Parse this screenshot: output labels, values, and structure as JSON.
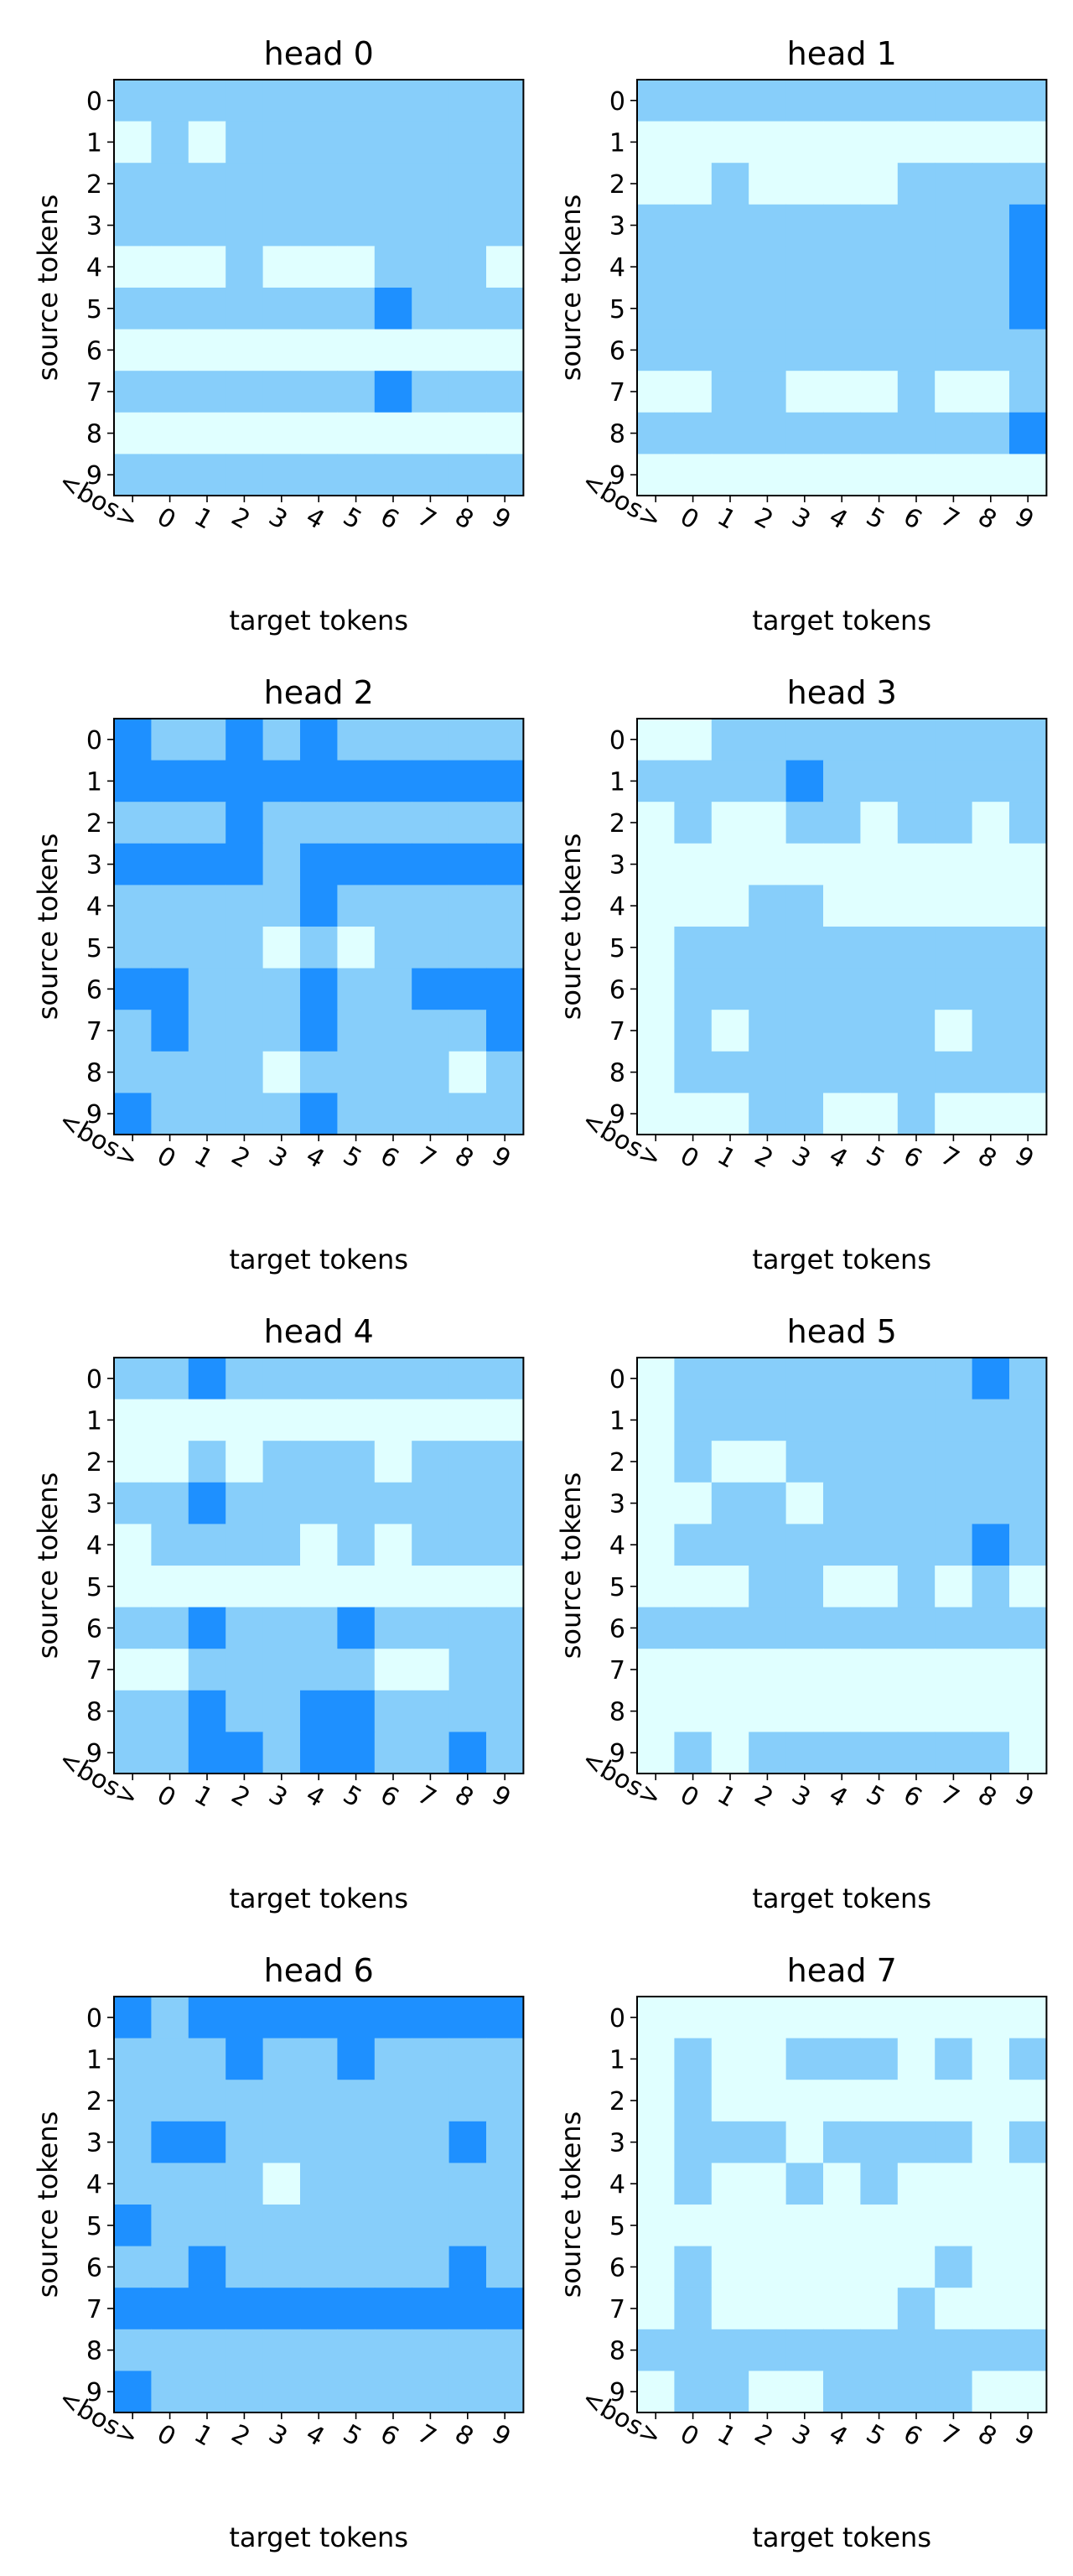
{
  "colors": {
    "low": "#e0ffff",
    "mid": "#87cefa",
    "high": "#1e90ff"
  },
  "chart_data": [
    {
      "type": "heatmap",
      "title": "head 0",
      "xlabel": "target tokens",
      "ylabel": "source tokens",
      "x_ticks": [
        "<bos>",
        "0",
        "1",
        "2",
        "3",
        "4",
        "5",
        "6",
        "7",
        "8",
        "9"
      ],
      "y_ticks": [
        "0",
        "1",
        "2",
        "3",
        "4",
        "5",
        "6",
        "7",
        "8",
        "9"
      ],
      "values": [
        [
          1,
          1,
          1,
          1,
          1,
          1,
          1,
          1,
          1,
          1,
          1
        ],
        [
          0,
          1,
          0,
          1,
          1,
          1,
          1,
          1,
          1,
          1,
          1
        ],
        [
          1,
          1,
          1,
          1,
          1,
          1,
          1,
          1,
          1,
          1,
          1
        ],
        [
          1,
          1,
          1,
          1,
          1,
          1,
          1,
          1,
          1,
          1,
          1
        ],
        [
          0,
          0,
          0,
          1,
          0,
          0,
          0,
          1,
          1,
          1,
          0
        ],
        [
          1,
          1,
          1,
          1,
          1,
          1,
          1,
          2,
          1,
          1,
          1
        ],
        [
          0,
          0,
          0,
          0,
          0,
          0,
          0,
          0,
          0,
          0,
          0
        ],
        [
          1,
          1,
          1,
          1,
          1,
          1,
          1,
          2,
          1,
          1,
          1
        ],
        [
          0,
          0,
          0,
          0,
          0,
          0,
          0,
          0,
          0,
          0,
          0
        ],
        [
          1,
          1,
          1,
          1,
          1,
          1,
          1,
          1,
          1,
          1,
          1
        ]
      ]
    },
    {
      "type": "heatmap",
      "title": "head 1",
      "xlabel": "target tokens",
      "ylabel": "source tokens",
      "x_ticks": [
        "<bos>",
        "0",
        "1",
        "2",
        "3",
        "4",
        "5",
        "6",
        "7",
        "8",
        "9"
      ],
      "y_ticks": [
        "0",
        "1",
        "2",
        "3",
        "4",
        "5",
        "6",
        "7",
        "8",
        "9"
      ],
      "values": [
        [
          1,
          1,
          1,
          1,
          1,
          1,
          1,
          1,
          1,
          1,
          1
        ],
        [
          0,
          0,
          0,
          0,
          0,
          0,
          0,
          0,
          0,
          0,
          0
        ],
        [
          0,
          0,
          1,
          0,
          0,
          0,
          0,
          1,
          1,
          1,
          1
        ],
        [
          1,
          1,
          1,
          1,
          1,
          1,
          1,
          1,
          1,
          1,
          2
        ],
        [
          1,
          1,
          1,
          1,
          1,
          1,
          1,
          1,
          1,
          1,
          2
        ],
        [
          1,
          1,
          1,
          1,
          1,
          1,
          1,
          1,
          1,
          1,
          2
        ],
        [
          1,
          1,
          1,
          1,
          1,
          1,
          1,
          1,
          1,
          1,
          1
        ],
        [
          0,
          0,
          1,
          1,
          0,
          0,
          0,
          1,
          0,
          0,
          1
        ],
        [
          1,
          1,
          1,
          1,
          1,
          1,
          1,
          1,
          1,
          1,
          2
        ],
        [
          0,
          0,
          0,
          0,
          0,
          0,
          0,
          0,
          0,
          0,
          0
        ]
      ]
    },
    {
      "type": "heatmap",
      "title": "head 2",
      "xlabel": "target tokens",
      "ylabel": "source tokens",
      "x_ticks": [
        "<bos>",
        "0",
        "1",
        "2",
        "3",
        "4",
        "5",
        "6",
        "7",
        "8",
        "9"
      ],
      "y_ticks": [
        "0",
        "1",
        "2",
        "3",
        "4",
        "5",
        "6",
        "7",
        "8",
        "9"
      ],
      "values": [
        [
          2,
          1,
          1,
          2,
          1,
          2,
          1,
          1,
          1,
          1,
          1
        ],
        [
          2,
          2,
          2,
          2,
          2,
          2,
          2,
          2,
          2,
          2,
          2
        ],
        [
          1,
          1,
          1,
          2,
          1,
          1,
          1,
          1,
          1,
          1,
          1
        ],
        [
          2,
          2,
          2,
          2,
          1,
          2,
          2,
          2,
          2,
          2,
          2
        ],
        [
          1,
          1,
          1,
          1,
          1,
          2,
          1,
          1,
          1,
          1,
          1
        ],
        [
          1,
          1,
          1,
          1,
          0,
          1,
          0,
          1,
          1,
          1,
          1
        ],
        [
          2,
          2,
          1,
          1,
          1,
          2,
          1,
          1,
          2,
          2,
          2
        ],
        [
          1,
          2,
          1,
          1,
          1,
          2,
          1,
          1,
          1,
          1,
          2
        ],
        [
          1,
          1,
          1,
          1,
          0,
          1,
          1,
          1,
          1,
          0,
          1
        ],
        [
          2,
          1,
          1,
          1,
          1,
          2,
          1,
          1,
          1,
          1,
          1
        ]
      ]
    },
    {
      "type": "heatmap",
      "title": "head 3",
      "xlabel": "target tokens",
      "ylabel": "source tokens",
      "x_ticks": [
        "<bos>",
        "0",
        "1",
        "2",
        "3",
        "4",
        "5",
        "6",
        "7",
        "8",
        "9"
      ],
      "y_ticks": [
        "0",
        "1",
        "2",
        "3",
        "4",
        "5",
        "6",
        "7",
        "8",
        "9"
      ],
      "values": [
        [
          0,
          0,
          1,
          1,
          1,
          1,
          1,
          1,
          1,
          1,
          1
        ],
        [
          1,
          1,
          1,
          1,
          2,
          1,
          1,
          1,
          1,
          1,
          1
        ],
        [
          0,
          1,
          0,
          0,
          1,
          1,
          0,
          1,
          1,
          0,
          1
        ],
        [
          0,
          0,
          0,
          0,
          0,
          0,
          0,
          0,
          0,
          0,
          0
        ],
        [
          0,
          0,
          0,
          1,
          1,
          0,
          0,
          0,
          0,
          0,
          0
        ],
        [
          0,
          1,
          1,
          1,
          1,
          1,
          1,
          1,
          1,
          1,
          1
        ],
        [
          0,
          1,
          1,
          1,
          1,
          1,
          1,
          1,
          1,
          1,
          1
        ],
        [
          0,
          1,
          0,
          1,
          1,
          1,
          1,
          1,
          0,
          1,
          1
        ],
        [
          0,
          1,
          1,
          1,
          1,
          1,
          1,
          1,
          1,
          1,
          1
        ],
        [
          0,
          0,
          0,
          1,
          1,
          0,
          0,
          1,
          0,
          0,
          0
        ]
      ]
    },
    {
      "type": "heatmap",
      "title": "head 4",
      "xlabel": "target tokens",
      "ylabel": "source tokens",
      "x_ticks": [
        "<bos>",
        "0",
        "1",
        "2",
        "3",
        "4",
        "5",
        "6",
        "7",
        "8",
        "9"
      ],
      "y_ticks": [
        "0",
        "1",
        "2",
        "3",
        "4",
        "5",
        "6",
        "7",
        "8",
        "9"
      ],
      "values": [
        [
          1,
          1,
          2,
          1,
          1,
          1,
          1,
          1,
          1,
          1,
          1
        ],
        [
          0,
          0,
          0,
          0,
          0,
          0,
          0,
          0,
          0,
          0,
          0
        ],
        [
          0,
          0,
          1,
          0,
          1,
          1,
          1,
          0,
          1,
          1,
          1
        ],
        [
          1,
          1,
          2,
          1,
          1,
          1,
          1,
          1,
          1,
          1,
          1
        ],
        [
          0,
          1,
          1,
          1,
          1,
          0,
          1,
          0,
          1,
          1,
          1
        ],
        [
          0,
          0,
          0,
          0,
          0,
          0,
          0,
          0,
          0,
          0,
          0
        ],
        [
          1,
          1,
          2,
          1,
          1,
          1,
          2,
          1,
          1,
          1,
          1
        ],
        [
          0,
          0,
          1,
          1,
          1,
          1,
          1,
          0,
          0,
          1,
          1
        ],
        [
          1,
          1,
          2,
          1,
          1,
          2,
          2,
          1,
          1,
          1,
          1
        ],
        [
          1,
          1,
          2,
          2,
          1,
          2,
          2,
          1,
          1,
          2,
          1
        ]
      ]
    },
    {
      "type": "heatmap",
      "title": "head 5",
      "xlabel": "target tokens",
      "ylabel": "source tokens",
      "x_ticks": [
        "<bos>",
        "0",
        "1",
        "2",
        "3",
        "4",
        "5",
        "6",
        "7",
        "8",
        "9"
      ],
      "y_ticks": [
        "0",
        "1",
        "2",
        "3",
        "4",
        "5",
        "6",
        "7",
        "8",
        "9"
      ],
      "values": [
        [
          0,
          1,
          1,
          1,
          1,
          1,
          1,
          1,
          1,
          2,
          1
        ],
        [
          0,
          1,
          1,
          1,
          1,
          1,
          1,
          1,
          1,
          1,
          1
        ],
        [
          0,
          1,
          0,
          0,
          1,
          1,
          1,
          1,
          1,
          1,
          1
        ],
        [
          0,
          0,
          1,
          1,
          0,
          1,
          1,
          1,
          1,
          1,
          1
        ],
        [
          0,
          1,
          1,
          1,
          1,
          1,
          1,
          1,
          1,
          2,
          1
        ],
        [
          0,
          0,
          0,
          1,
          1,
          0,
          0,
          1,
          0,
          1,
          0
        ],
        [
          1,
          1,
          1,
          1,
          1,
          1,
          1,
          1,
          1,
          1,
          1
        ],
        [
          0,
          0,
          0,
          0,
          0,
          0,
          0,
          0,
          0,
          0,
          0
        ],
        [
          0,
          0,
          0,
          0,
          0,
          0,
          0,
          0,
          0,
          0,
          0
        ],
        [
          0,
          1,
          0,
          1,
          1,
          1,
          1,
          1,
          1,
          1,
          0
        ]
      ]
    },
    {
      "type": "heatmap",
      "title": "head 6",
      "xlabel": "target tokens",
      "ylabel": "source tokens",
      "x_ticks": [
        "<bos>",
        "0",
        "1",
        "2",
        "3",
        "4",
        "5",
        "6",
        "7",
        "8",
        "9"
      ],
      "y_ticks": [
        "0",
        "1",
        "2",
        "3",
        "4",
        "5",
        "6",
        "7",
        "8",
        "9"
      ],
      "values": [
        [
          2,
          1,
          2,
          2,
          2,
          2,
          2,
          2,
          2,
          2,
          2
        ],
        [
          1,
          1,
          1,
          2,
          1,
          1,
          2,
          1,
          1,
          1,
          1
        ],
        [
          1,
          1,
          1,
          1,
          1,
          1,
          1,
          1,
          1,
          1,
          1
        ],
        [
          1,
          2,
          2,
          1,
          1,
          1,
          1,
          1,
          1,
          2,
          1
        ],
        [
          1,
          1,
          1,
          1,
          0,
          1,
          1,
          1,
          1,
          1,
          1
        ],
        [
          2,
          1,
          1,
          1,
          1,
          1,
          1,
          1,
          1,
          1,
          1
        ],
        [
          1,
          1,
          2,
          1,
          1,
          1,
          1,
          1,
          1,
          2,
          1
        ],
        [
          2,
          2,
          2,
          2,
          2,
          2,
          2,
          2,
          2,
          2,
          2
        ],
        [
          1,
          1,
          1,
          1,
          1,
          1,
          1,
          1,
          1,
          1,
          1
        ],
        [
          2,
          1,
          1,
          1,
          1,
          1,
          1,
          1,
          1,
          1,
          1
        ]
      ]
    },
    {
      "type": "heatmap",
      "title": "head 7",
      "xlabel": "target tokens",
      "ylabel": "source tokens",
      "x_ticks": [
        "<bos>",
        "0",
        "1",
        "2",
        "3",
        "4",
        "5",
        "6",
        "7",
        "8",
        "9"
      ],
      "y_ticks": [
        "0",
        "1",
        "2",
        "3",
        "4",
        "5",
        "6",
        "7",
        "8",
        "9"
      ],
      "values": [
        [
          0,
          0,
          0,
          0,
          0,
          0,
          0,
          0,
          0,
          0,
          0
        ],
        [
          0,
          1,
          0,
          0,
          1,
          1,
          1,
          0,
          1,
          0,
          1
        ],
        [
          0,
          1,
          0,
          0,
          0,
          0,
          0,
          0,
          0,
          0,
          0
        ],
        [
          0,
          1,
          1,
          1,
          0,
          1,
          1,
          1,
          1,
          0,
          1
        ],
        [
          0,
          1,
          0,
          0,
          1,
          0,
          1,
          0,
          0,
          0,
          0
        ],
        [
          0,
          0,
          0,
          0,
          0,
          0,
          0,
          0,
          0,
          0,
          0
        ],
        [
          0,
          1,
          0,
          0,
          0,
          0,
          0,
          0,
          1,
          0,
          0
        ],
        [
          0,
          1,
          0,
          0,
          0,
          0,
          0,
          1,
          0,
          0,
          0
        ],
        [
          1,
          1,
          1,
          1,
          1,
          1,
          1,
          1,
          1,
          1,
          1
        ],
        [
          0,
          1,
          1,
          0,
          0,
          1,
          1,
          1,
          1,
          0,
          0
        ]
      ]
    }
  ]
}
